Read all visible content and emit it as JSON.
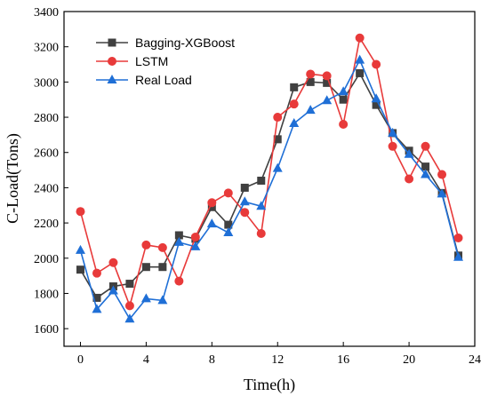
{
  "chart_data": {
    "type": "line",
    "xlabel": "Time(h)",
    "ylabel": "C-Load(Tons)",
    "xlim": [
      -1,
      24
    ],
    "ylim": [
      1500,
      3400
    ],
    "xticks": [
      0,
      4,
      8,
      12,
      16,
      20,
      24
    ],
    "yticks": [
      1600,
      1800,
      2000,
      2200,
      2400,
      2600,
      2800,
      3000,
      3200,
      3400
    ],
    "xtick_labels": [
      "0",
      "4",
      "8",
      "12",
      "16",
      "20",
      "24"
    ],
    "ytick_labels": [
      "1600",
      "1800",
      "2000",
      "2200",
      "2400",
      "2600",
      "2800",
      "3000",
      "3200",
      "3400"
    ],
    "legend_position": "top-left",
    "grid": false,
    "x": [
      0,
      1,
      2,
      3,
      4,
      5,
      6,
      7,
      8,
      9,
      10,
      11,
      12,
      13,
      14,
      15,
      16,
      17,
      18,
      19,
      20,
      21,
      22,
      23
    ],
    "series": [
      {
        "name": "Bagging-XGBoost",
        "color": "#404040",
        "marker": "square",
        "values": [
          1935,
          1775,
          1840,
          1855,
          1950,
          1950,
          2130,
          2110,
          2290,
          2190,
          2400,
          2440,
          2675,
          2970,
          3000,
          2995,
          2900,
          3050,
          2870,
          2710,
          2610,
          2520,
          2370,
          2015
        ]
      },
      {
        "name": "LSTM",
        "color": "#e83a3a",
        "marker": "circle",
        "values": [
          2265,
          1915,
          1975,
          1730,
          2075,
          2060,
          1870,
          2120,
          2315,
          2370,
          2260,
          2140,
          2800,
          2875,
          3045,
          3035,
          2760,
          3250,
          3100,
          2635,
          2450,
          2635,
          2475,
          2115
        ]
      },
      {
        "name": "Real Load",
        "color": "#1f6fd6",
        "marker": "triangle",
        "values": [
          2045,
          1710,
          1815,
          1655,
          1770,
          1760,
          2090,
          2065,
          2195,
          2145,
          2320,
          2295,
          2510,
          2765,
          2840,
          2895,
          2945,
          3125,
          2905,
          2710,
          2590,
          2475,
          2365,
          2005
        ]
      }
    ]
  }
}
